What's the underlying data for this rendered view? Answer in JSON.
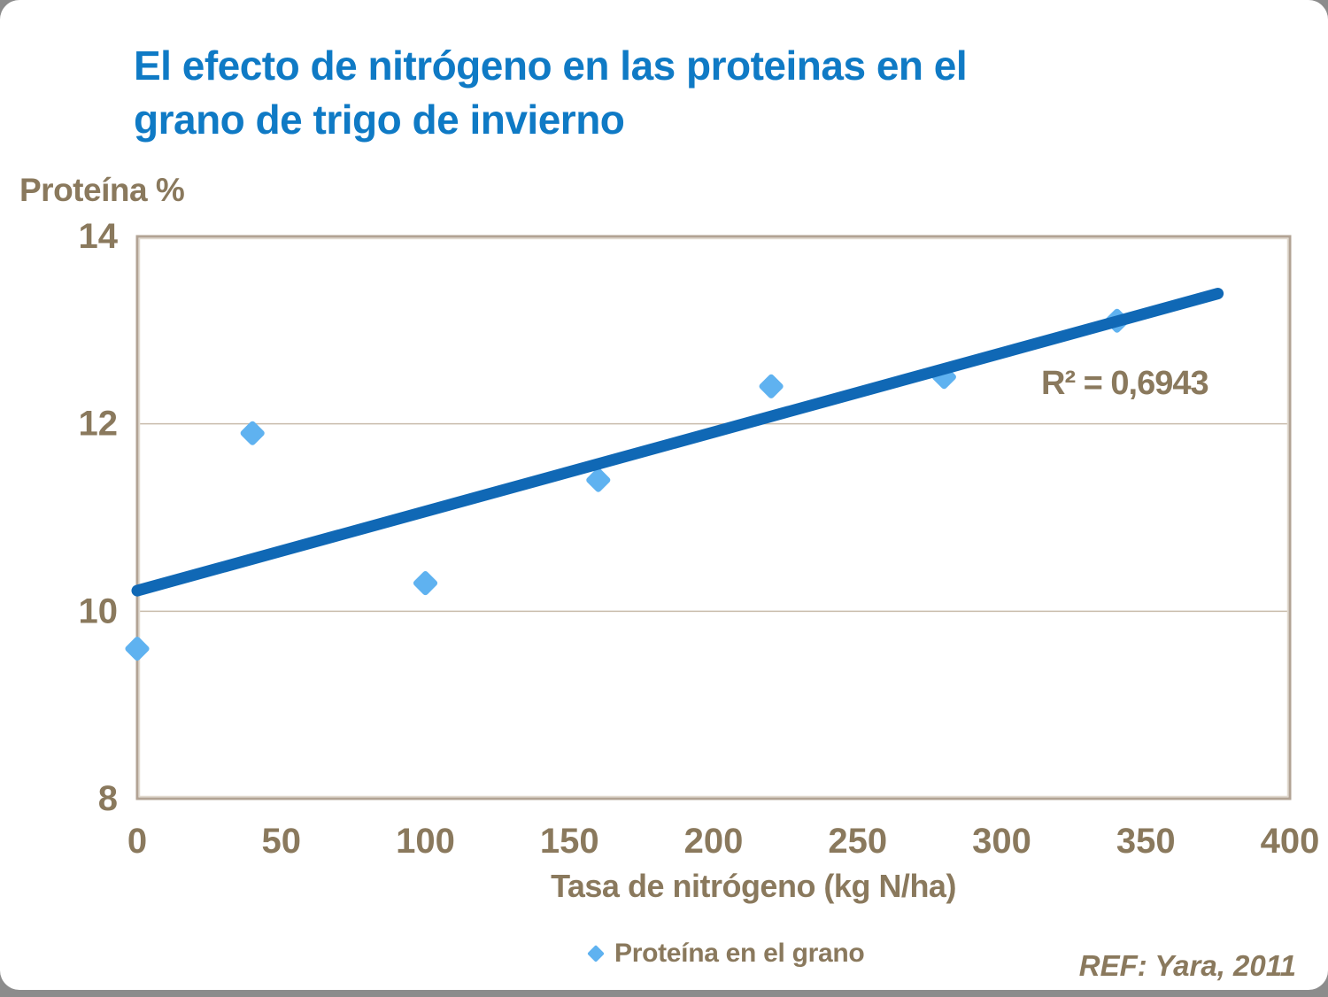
{
  "title": {
    "line1": "El efecto de nitrógeno en las proteinas en el",
    "line2": "grano de trigo de invierno"
  },
  "footnote": "REF: Yara, 2011",
  "chart_data": {
    "type": "scatter",
    "title": "El efecto de nitrógeno en las proteinas en el grano de trigo de invierno",
    "ylabel": "Proteína %",
    "xlabel": "Tasa de nitrógeno (kg N/ha)",
    "xlim": [
      0,
      400
    ],
    "ylim": [
      8,
      14
    ],
    "x_ticks": [
      0,
      50,
      100,
      150,
      200,
      250,
      300,
      350,
      400
    ],
    "y_ticks": [
      8,
      10,
      12,
      14
    ],
    "gridlines_y": [
      10,
      12
    ],
    "grid": "horizontal-only",
    "legend_position": "bottom",
    "series": [
      {
        "name": "Proteína en el grano",
        "marker": "diamond",
        "color": "#5FB2F0",
        "points": [
          [
            0,
            9.6
          ],
          [
            40,
            11.9
          ],
          [
            100,
            10.3
          ],
          [
            160,
            11.4
          ],
          [
            220,
            12.4
          ],
          [
            280,
            12.5
          ],
          [
            340,
            13.1
          ]
        ]
      }
    ],
    "trendline": {
      "x_start": 0,
      "y_start": 10.22,
      "x_end": 375,
      "y_end": 13.39,
      "color": "#1068B5",
      "r2_label": "R² = 0,6943"
    }
  },
  "colors": {
    "background": "#8C8C8C",
    "slide_bg": "#FFFFFF",
    "title": "#0F7AC5",
    "axis_text": "#8A795D",
    "plot_border": "#B2A394",
    "plot_border_inner": "#E2DACF",
    "gridline": "#C9BCAC",
    "trendline": "#1068B5",
    "marker": "#5FB2F0"
  }
}
